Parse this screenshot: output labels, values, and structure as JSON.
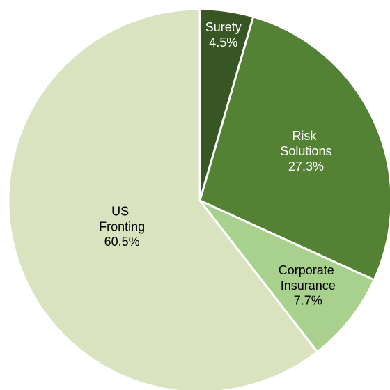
{
  "chart_data": {
    "type": "pie",
    "categories": [
      "Surety",
      "Risk Solutions",
      "Corporate Insurance",
      "US Fronting"
    ],
    "values": [
      4.5,
      27.3,
      7.7,
      60.5
    ],
    "value_labels": [
      "4.5%",
      "27.3%",
      "7.7%",
      "60.5%"
    ],
    "colors": [
      "#375623",
      "#548235",
      "#a9d18e",
      "#d9e3c0"
    ]
  }
}
